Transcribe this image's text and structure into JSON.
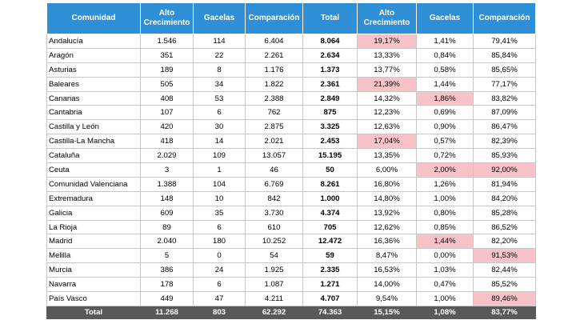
{
  "headers": [
    "Comunidad",
    "Alto Crecimiento",
    "Gacelas",
    "Comparación",
    "Total",
    "Alto Crecimiento",
    "Gacelas",
    "Comparación"
  ],
  "rows": [
    {
      "name": "Andalucía",
      "alto": "1.546",
      "gacelas": "114",
      "comp": "6.404",
      "total": "8.064",
      "alto_pct": "19,17%",
      "gacelas_pct": "1,41%",
      "comp_pct": "79,41%",
      "hl": [
        5
      ]
    },
    {
      "name": "Aragón",
      "alto": "351",
      "gacelas": "22",
      "comp": "2.261",
      "total": "2.634",
      "alto_pct": "13,33%",
      "gacelas_pct": "0,84%",
      "comp_pct": "85,84%",
      "hl": []
    },
    {
      "name": "Asturias",
      "alto": "189",
      "gacelas": "8",
      "comp": "1.176",
      "total": "1.373",
      "alto_pct": "13,77%",
      "gacelas_pct": "0,58%",
      "comp_pct": "85,65%",
      "hl": []
    },
    {
      "name": "Baleares",
      "alto": "505",
      "gacelas": "34",
      "comp": "1.822",
      "total": "2.361",
      "alto_pct": "21,39%",
      "gacelas_pct": "1,44%",
      "comp_pct": "77,17%",
      "hl": [
        5
      ]
    },
    {
      "name": "Canarias",
      "alto": "408",
      "gacelas": "53",
      "comp": "2.388",
      "total": "2.849",
      "alto_pct": "14,32%",
      "gacelas_pct": "1,86%",
      "comp_pct": "83,82%",
      "hl": [
        6
      ]
    },
    {
      "name": "Cantabria",
      "alto": "107",
      "gacelas": "6",
      "comp": "762",
      "total": "875",
      "alto_pct": "12,23%",
      "gacelas_pct": "0,69%",
      "comp_pct": "87,09%",
      "hl": []
    },
    {
      "name": "Castilla y León",
      "alto": "420",
      "gacelas": "30",
      "comp": "2.875",
      "total": "3.325",
      "alto_pct": "12,63%",
      "gacelas_pct": "0,90%",
      "comp_pct": "86,47%",
      "hl": []
    },
    {
      "name": "Castilla-La Mancha",
      "alto": "418",
      "gacelas": "14",
      "comp": "2.021",
      "total": "2.453",
      "alto_pct": "17,04%",
      "gacelas_pct": "0,57%",
      "comp_pct": "82,39%",
      "hl": [
        5
      ]
    },
    {
      "name": "Cataluña",
      "alto": "2.029",
      "gacelas": "109",
      "comp": "13.057",
      "total": "15.195",
      "alto_pct": "13,35%",
      "gacelas_pct": "0,72%",
      "comp_pct": "85,93%",
      "hl": []
    },
    {
      "name": "Ceuta",
      "alto": "3",
      "gacelas": "1",
      "comp": "46",
      "total": "50",
      "alto_pct": "6,00%",
      "gacelas_pct": "2,00%",
      "comp_pct": "92,00%",
      "hl": [
        6,
        7
      ]
    },
    {
      "name": "Comunidad Valenciana",
      "alto": "1.388",
      "gacelas": "104",
      "comp": "6.769",
      "total": "8.261",
      "alto_pct": "16,80%",
      "gacelas_pct": "1,26%",
      "comp_pct": "81,94%",
      "hl": []
    },
    {
      "name": "Extremadura",
      "alto": "148",
      "gacelas": "10",
      "comp": "842",
      "total": "1.000",
      "alto_pct": "14,80%",
      "gacelas_pct": "1,00%",
      "comp_pct": "84,20%",
      "hl": []
    },
    {
      "name": "Galicia",
      "alto": "609",
      "gacelas": "35",
      "comp": "3.730",
      "total": "4.374",
      "alto_pct": "13,92%",
      "gacelas_pct": "0,80%",
      "comp_pct": "85,28%",
      "hl": []
    },
    {
      "name": "La Rioja",
      "alto": "89",
      "gacelas": "6",
      "comp": "610",
      "total": "705",
      "alto_pct": "12,62%",
      "gacelas_pct": "0,85%",
      "comp_pct": "86,52%",
      "hl": []
    },
    {
      "name": "Madrid",
      "alto": "2.040",
      "gacelas": "180",
      "comp": "10.252",
      "total": "12.472",
      "alto_pct": "16,36%",
      "gacelas_pct": "1,44%",
      "comp_pct": "82,20%",
      "hl": [
        6
      ]
    },
    {
      "name": "Melilla",
      "alto": "5",
      "gacelas": "0",
      "comp": "54",
      "total": "59",
      "alto_pct": "8,47%",
      "gacelas_pct": "0,00%",
      "comp_pct": "91,53%",
      "hl": [
        7
      ]
    },
    {
      "name": "Murcia",
      "alto": "386",
      "gacelas": "24",
      "comp": "1.925",
      "total": "2.335",
      "alto_pct": "16,53%",
      "gacelas_pct": "1,03%",
      "comp_pct": "82,44%",
      "hl": []
    },
    {
      "name": "Navarra",
      "alto": "178",
      "gacelas": "6",
      "comp": "1.087",
      "total": "1.271",
      "alto_pct": "14,00%",
      "gacelas_pct": "0,47%",
      "comp_pct": "85,52%",
      "hl": []
    },
    {
      "name": "País Vasco",
      "alto": "449",
      "gacelas": "47",
      "comp": "4.211",
      "total": "4.707",
      "alto_pct": "9,54%",
      "gacelas_pct": "1,00%",
      "comp_pct": "89,46%",
      "hl": [
        7
      ]
    }
  ],
  "total": {
    "name": "Total",
    "alto": "11.268",
    "gacelas": "803",
    "comp": "62.292",
    "total": "74.363",
    "alto_pct": "15,15%",
    "gacelas_pct": "1,08%",
    "comp_pct": "83,77%"
  },
  "colors": {
    "header_bg": "#2e8fd6",
    "highlight": "#f7c3c8",
    "total_bg": "#595959"
  }
}
